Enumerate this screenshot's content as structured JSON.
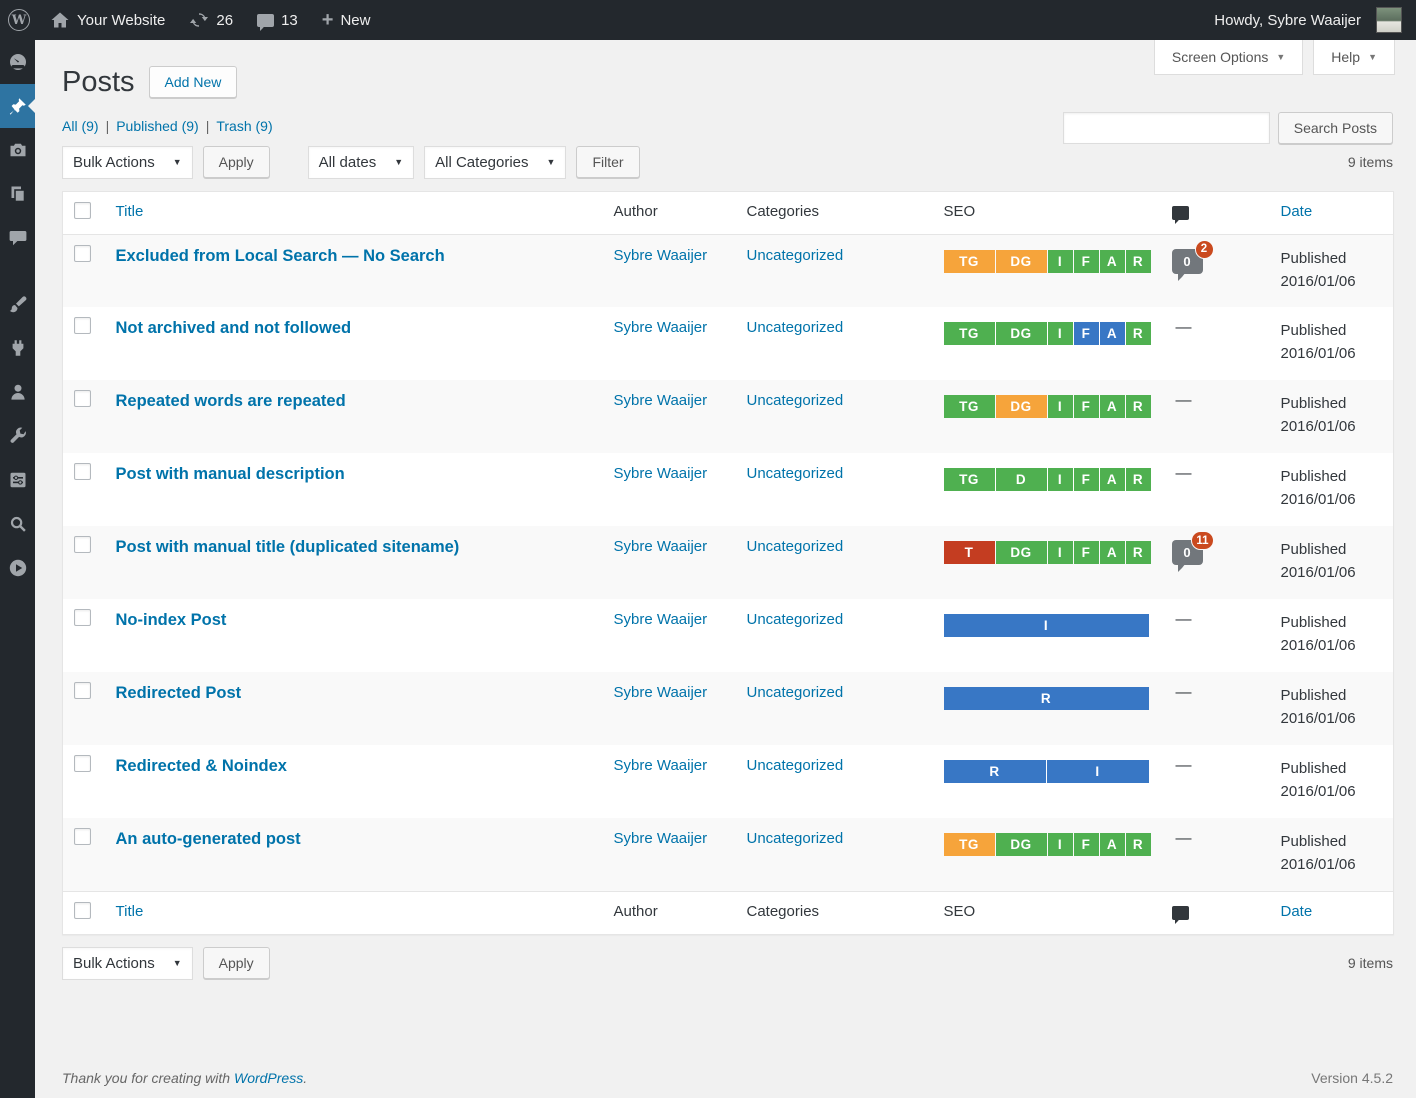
{
  "admin_bar": {
    "site_name": "Your Website",
    "updates_count": "26",
    "comments_count": "13",
    "new_label": "New",
    "howdy": "Howdy, Sybre Waaijer",
    "logo_letter": "W"
  },
  "sidebar": {
    "items": [
      {
        "icon": "dashboard",
        "active": false
      },
      {
        "icon": "posts-pin",
        "active": true
      },
      {
        "icon": "media-camera",
        "active": false
      },
      {
        "icon": "pages",
        "active": false
      },
      {
        "icon": "comments-bubble",
        "active": false
      },
      {
        "icon": "appearance-brush",
        "active": false,
        "gap_before": true
      },
      {
        "icon": "plugins-plug",
        "active": false
      },
      {
        "icon": "users-person",
        "active": false
      },
      {
        "icon": "tools-wrench",
        "active": false
      },
      {
        "icon": "settings-sliders",
        "active": false
      },
      {
        "icon": "search-magnifier",
        "active": false
      },
      {
        "icon": "play-circle",
        "active": false
      }
    ]
  },
  "page": {
    "title": "Posts",
    "add_new_label": "Add New",
    "screen_options_label": "Screen Options",
    "help_label": "Help",
    "filters_separator": "|",
    "filters": [
      {
        "label": "All",
        "count": "(9)"
      },
      {
        "label": "Published",
        "count": "(9)"
      },
      {
        "label": "Trash",
        "count": "(9)"
      }
    ],
    "bulk_actions_label": "Bulk Actions",
    "apply_label": "Apply",
    "dates_filter_value": "All dates",
    "categories_filter_value": "All Categories",
    "filter_button_label": "Filter",
    "search_placeholder": "",
    "search_button_label": "Search Posts",
    "items_count": "9 items"
  },
  "colors": {
    "seo_green": "#4fb050",
    "seo_orange": "#f6a43b",
    "seo_red": "#c43d21",
    "seo_blue": "#3877c5",
    "pending_badge_red": "#ca4a1f",
    "link_blue": "#0073aa",
    "active_menu_blue": "#2e74a2"
  },
  "table": {
    "columns": {
      "title": "Title",
      "author": "Author",
      "categories": "Categories",
      "seo": "SEO",
      "date": "Date"
    },
    "rows": [
      {
        "title": "Excluded from Local Search — No Search",
        "author": "Sybre Waaijer",
        "category": "Uncategorized",
        "badges": [
          {
            "label": "TG",
            "color": "orange",
            "size": "wide"
          },
          {
            "label": "DG",
            "color": "orange",
            "size": "wide"
          },
          {
            "label": "I",
            "color": "green",
            "size": "narrow"
          },
          {
            "label": "F",
            "color": "green",
            "size": "narrow"
          },
          {
            "label": "A",
            "color": "green",
            "size": "narrow"
          },
          {
            "label": "R",
            "color": "green",
            "size": "narrow"
          }
        ],
        "comments": {
          "approved": "0",
          "pending": "2"
        },
        "status": "Published",
        "date": "2016/01/06"
      },
      {
        "title": "Not archived and not followed",
        "author": "Sybre Waaijer",
        "category": "Uncategorized",
        "badges": [
          {
            "label": "TG",
            "color": "green",
            "size": "wide"
          },
          {
            "label": "DG",
            "color": "green",
            "size": "wide"
          },
          {
            "label": "I",
            "color": "green",
            "size": "narrow"
          },
          {
            "label": "F",
            "color": "blue",
            "size": "narrow"
          },
          {
            "label": "A",
            "color": "blue",
            "size": "narrow"
          },
          {
            "label": "R",
            "color": "green",
            "size": "narrow"
          }
        ],
        "comments": null,
        "status": "Published",
        "date": "2016/01/06"
      },
      {
        "title": "Repeated words are repeated",
        "author": "Sybre Waaijer",
        "category": "Uncategorized",
        "badges": [
          {
            "label": "TG",
            "color": "green",
            "size": "wide"
          },
          {
            "label": "DG",
            "color": "orange",
            "size": "wide"
          },
          {
            "label": "I",
            "color": "green",
            "size": "narrow"
          },
          {
            "label": "F",
            "color": "green",
            "size": "narrow"
          },
          {
            "label": "A",
            "color": "green",
            "size": "narrow"
          },
          {
            "label": "R",
            "color": "green",
            "size": "narrow"
          }
        ],
        "comments": null,
        "status": "Published",
        "date": "2016/01/06"
      },
      {
        "title": "Post with manual description",
        "author": "Sybre Waaijer",
        "category": "Uncategorized",
        "badges": [
          {
            "label": "TG",
            "color": "green",
            "size": "wide"
          },
          {
            "label": "D",
            "color": "green",
            "size": "wide"
          },
          {
            "label": "I",
            "color": "green",
            "size": "narrow"
          },
          {
            "label": "F",
            "color": "green",
            "size": "narrow"
          },
          {
            "label": "A",
            "color": "green",
            "size": "narrow"
          },
          {
            "label": "R",
            "color": "green",
            "size": "narrow"
          }
        ],
        "comments": null,
        "status": "Published",
        "date": "2016/01/06"
      },
      {
        "title": "Post with manual title (duplicated sitename)",
        "author": "Sybre Waaijer",
        "category": "Uncategorized",
        "badges": [
          {
            "label": "T",
            "color": "red",
            "size": "wide"
          },
          {
            "label": "DG",
            "color": "green",
            "size": "wide"
          },
          {
            "label": "I",
            "color": "green",
            "size": "narrow"
          },
          {
            "label": "F",
            "color": "green",
            "size": "narrow"
          },
          {
            "label": "A",
            "color": "green",
            "size": "narrow"
          },
          {
            "label": "R",
            "color": "green",
            "size": "narrow"
          }
        ],
        "comments": {
          "approved": "0",
          "pending": "11"
        },
        "status": "Published",
        "date": "2016/01/06"
      },
      {
        "title": "No-index Post",
        "author": "Sybre Waaijer",
        "category": "Uncategorized",
        "badges": [
          {
            "label": "I",
            "color": "blue",
            "size": "full"
          }
        ],
        "comments": null,
        "status": "Published",
        "date": "2016/01/06"
      },
      {
        "title": "Redirected Post",
        "author": "Sybre Waaijer",
        "category": "Uncategorized",
        "badges": [
          {
            "label": "R",
            "color": "blue",
            "size": "full"
          }
        ],
        "comments": null,
        "status": "Published",
        "date": "2016/01/06"
      },
      {
        "title": "Redirected & Noindex",
        "author": "Sybre Waaijer",
        "category": "Uncategorized",
        "badges": [
          {
            "label": "R",
            "color": "blue",
            "size": "half"
          },
          {
            "label": "I",
            "color": "blue",
            "size": "half"
          }
        ],
        "comments": null,
        "status": "Published",
        "date": "2016/01/06"
      },
      {
        "title": "An auto-generated post",
        "author": "Sybre Waaijer",
        "category": "Uncategorized",
        "badges": [
          {
            "label": "TG",
            "color": "orange",
            "size": "wide"
          },
          {
            "label": "DG",
            "color": "green",
            "size": "wide"
          },
          {
            "label": "I",
            "color": "green",
            "size": "narrow"
          },
          {
            "label": "F",
            "color": "green",
            "size": "narrow"
          },
          {
            "label": "A",
            "color": "green",
            "size": "narrow"
          },
          {
            "label": "R",
            "color": "green",
            "size": "narrow"
          }
        ],
        "comments": null,
        "status": "Published",
        "date": "2016/01/06"
      }
    ]
  },
  "footer": {
    "thanks_prefix": "Thank you for creating with ",
    "wordpress_link": "WordPress",
    "thanks_suffix": ".",
    "version": "Version 4.5.2"
  }
}
